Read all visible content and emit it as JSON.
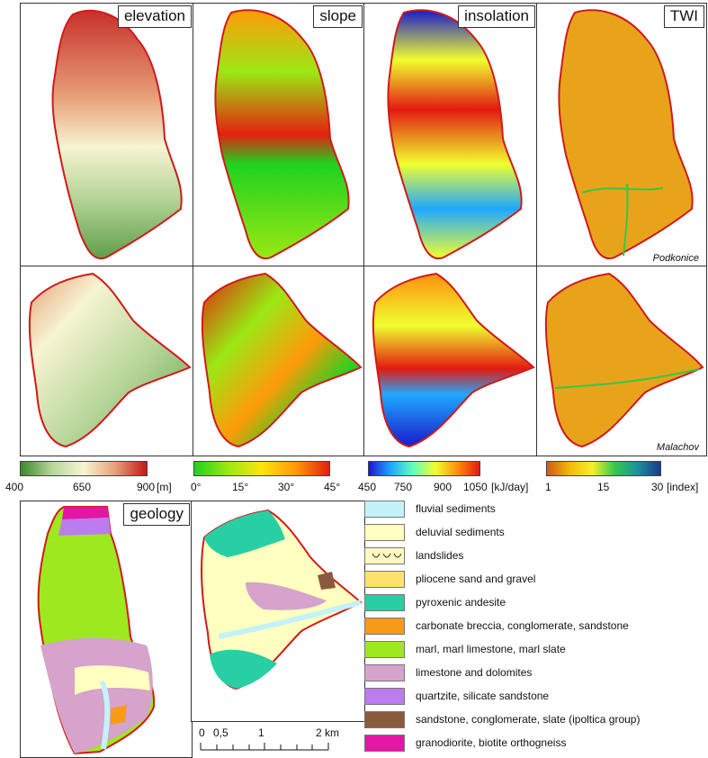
{
  "panels": {
    "elevation_title": "elevation",
    "slope_title": "slope",
    "insolation_title": "insolation",
    "twi_title": "TWI",
    "geology_title": "geology",
    "place_top": "Podkonice",
    "place_bottom": "Malachov"
  },
  "colorbars": {
    "elevation": {
      "ticks": [
        "400",
        "650",
        "900"
      ],
      "unit": "[m]",
      "colors": [
        "#3a8a2a",
        "#b7d69a",
        "#f7f4d2",
        "#e7a079",
        "#c11a16"
      ]
    },
    "slope": {
      "ticks": [
        "0°",
        "15°",
        "30°",
        "45°"
      ],
      "colors": [
        "#1fd21f",
        "#9be813",
        "#ffe30c",
        "#ff9a0a",
        "#e3200f"
      ]
    },
    "insolation": {
      "ticks": [
        "450",
        "750",
        "900",
        "1050"
      ],
      "unit": "[kJ/day]",
      "colors": [
        "#1a1acb",
        "#1fa8ff",
        "#62ffbd",
        "#f0ff2e",
        "#ff8f0d",
        "#e21a10"
      ]
    },
    "twi": {
      "ticks": [
        "1",
        "15",
        "30"
      ],
      "unit": "[index]",
      "colors": [
        "#cf5a16",
        "#f3b90b",
        "#f5f02a",
        "#34c84a",
        "#1d8fa0",
        "#1a3a8a"
      ]
    }
  },
  "legend": [
    {
      "label": "fluvial sediments",
      "color": "#c3f2f8"
    },
    {
      "label": "deluvial sediments",
      "color": "#ffffbf"
    },
    {
      "label": "landslides",
      "color": "#fdf8c2",
      "pattern": "arcs"
    },
    {
      "label": "pliocene sand and gravel",
      "color": "#fbe26a"
    },
    {
      "label": "pyroxenic andesite",
      "color": "#28cfa4"
    },
    {
      "label": "carbonate breccia, conglomerate, sandstone",
      "color": "#f79a1a"
    },
    {
      "label": "marl, marl limestone, marl slate",
      "color": "#9ee81f"
    },
    {
      "label": "limestone and dolomites",
      "color": "#d5a3cb"
    },
    {
      "label": "quartzite, silicate sandstone",
      "color": "#bb7cf0"
    },
    {
      "label": "sandstone, conglomerate, slate (ipoltica group)",
      "color": "#8b5a3c"
    },
    {
      "label": "granodiorite, biotite orthogneiss",
      "color": "#e316a6"
    }
  ],
  "scalebar": {
    "labels": [
      "0",
      "0,5",
      "1",
      "2 km"
    ]
  }
}
